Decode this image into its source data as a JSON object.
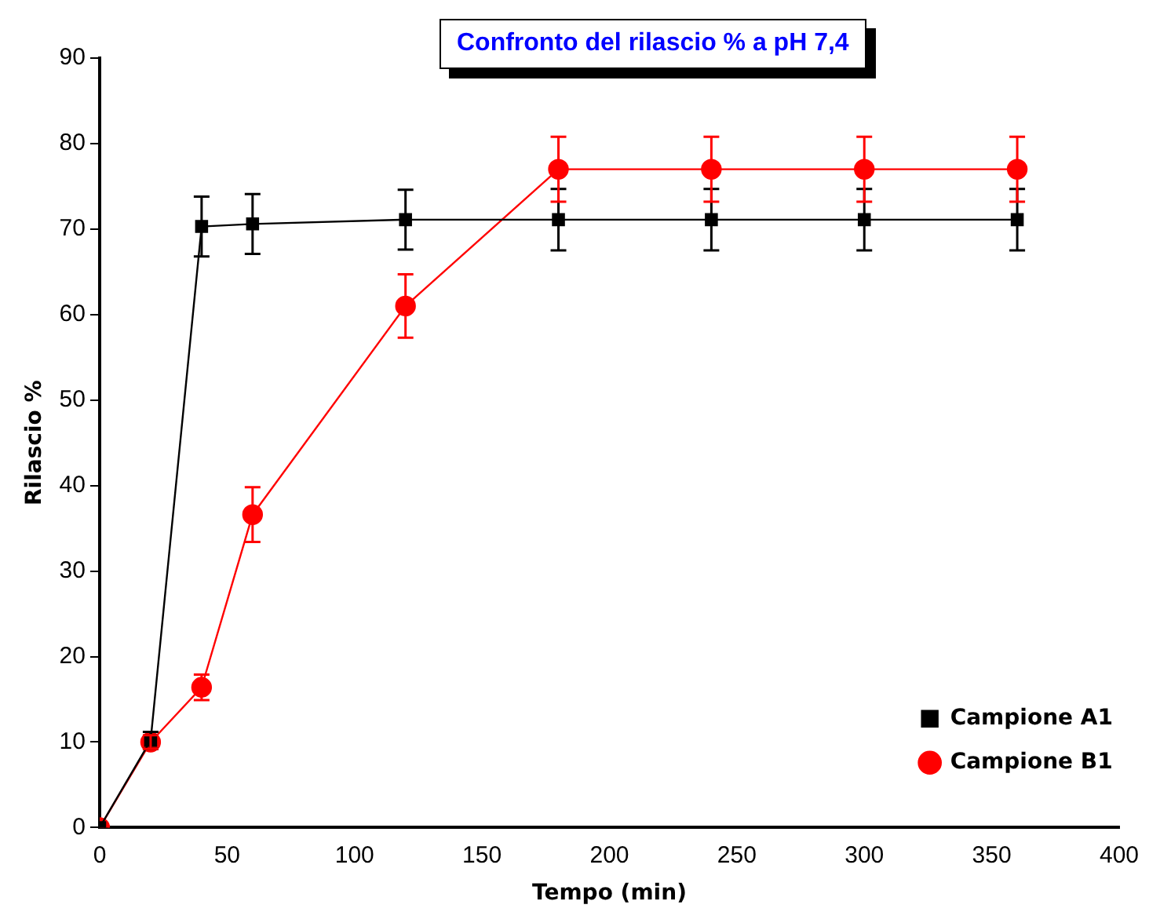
{
  "chart_data": {
    "type": "line",
    "title": "Confronto del rilascio % a pH 7,4",
    "xlabel": "Tempo (min)",
    "ylabel": "Rilascio %",
    "x": [
      0,
      20,
      40,
      60,
      120,
      180,
      240,
      300,
      360
    ],
    "series": [
      {
        "name": "Campione A1",
        "color": "#000000",
        "marker": "square",
        "values": [
          0,
          10.2,
          70.3,
          70.6,
          71.1,
          71.1,
          71.1,
          71.1,
          71.1
        ],
        "errors": [
          null,
          1,
          3.5,
          3.5,
          3.5,
          3.6,
          3.6,
          3.6,
          3.6
        ]
      },
      {
        "name": "Campione B1",
        "color": "#ff0000",
        "marker": "circle",
        "values": [
          0,
          10,
          16.4,
          36.6,
          61,
          77,
          77,
          77,
          77
        ],
        "errors": [
          null,
          0.8,
          1.5,
          3.2,
          3.7,
          3.8,
          3.8,
          3.8,
          3.8
        ]
      }
    ],
    "xlim": [
      0,
      400
    ],
    "xticks": [
      0,
      50,
      100,
      150,
      200,
      250,
      300,
      350,
      400
    ],
    "ylim": [
      0,
      90
    ],
    "yticks": [
      0,
      10,
      20,
      30,
      40,
      50,
      60,
      70,
      80,
      90
    ],
    "grid": false,
    "legend": "right",
    "line_style": "solid"
  }
}
